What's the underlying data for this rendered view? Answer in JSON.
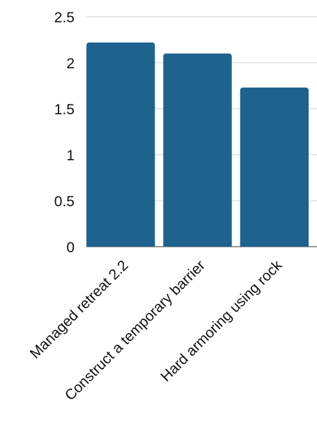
{
  "chart_data": {
    "type": "bar",
    "title": "",
    "xlabel": "",
    "ylabel": "",
    "categories": [
      "Managed retreat 2.2",
      "Construct a temporary barrier",
      "Hard armoring using rock"
    ],
    "values": [
      2.22,
      2.1,
      1.73
    ],
    "ylim": [
      0,
      2.5
    ],
    "yticks": [
      "0",
      "0.5",
      "1",
      "1.5",
      "2",
      "2.5"
    ],
    "grid": true,
    "legend": "none",
    "bar_color": "#1f628e"
  }
}
